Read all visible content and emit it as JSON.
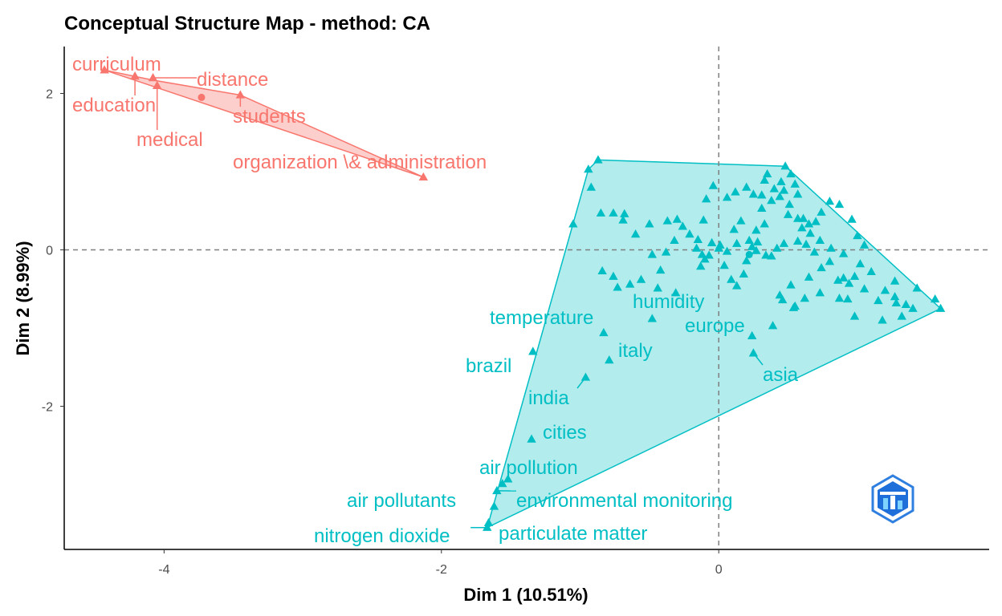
{
  "chart_data": {
    "type": "scatter",
    "title": "Conceptual Structure Map - method: CA",
    "xlabel": "Dim 1 (10.51%)",
    "ylabel": "Dim 2 (8.99%)",
    "xlim": [
      -4.72,
      1.95
    ],
    "ylim": [
      -3.83,
      2.6
    ],
    "xticks": [
      -4,
      -2,
      0
    ],
    "yticks": [
      -2,
      0,
      2
    ],
    "reference_lines": {
      "x": 0,
      "y": 0,
      "style": "dashed"
    },
    "grid": false,
    "legend": "none",
    "clusters": [
      {
        "color": "#F8766D",
        "fill": "rgba(248,118,109,0.35)",
        "hull": [
          [
            -4.43,
            2.3
          ],
          [
            -2.13,
            0.93
          ],
          [
            -3.45,
            1.98
          ],
          [
            -4.08,
            2.17
          ]
        ],
        "centroid": [
          -3.73,
          1.95
        ],
        "points": [
          [
            -4.43,
            2.3
          ],
          [
            -4.21,
            2.22
          ],
          [
            -4.08,
            2.2
          ],
          [
            -4.05,
            2.1
          ],
          [
            -3.45,
            1.98
          ],
          [
            -2.13,
            0.93
          ]
        ],
        "labels": [
          {
            "text": "curriculum",
            "point": [
              -4.43,
              2.3
            ]
          },
          {
            "text": "distance",
            "point": [
              -4.08,
              2.2
            ]
          },
          {
            "text": "education",
            "point": [
              -4.21,
              2.22
            ]
          },
          {
            "text": "students",
            "point": [
              -3.45,
              1.98
            ]
          },
          {
            "text": "medical",
            "point": [
              -4.05,
              2.1
            ]
          },
          {
            "text": "organization \\& administration",
            "point": [
              -2.13,
              0.93
            ]
          }
        ]
      },
      {
        "color": "#00BFC4",
        "fill": "rgba(0,191,196,0.30)",
        "hull": [
          [
            -1.67,
            -3.55
          ],
          [
            1.6,
            -0.75
          ],
          [
            0.48,
            1.07
          ],
          [
            -0.87,
            1.15
          ],
          [
            -0.94,
            1.03
          ]
        ],
        "centroid": [
          0.22,
          -0.06
        ],
        "points": [
          [
            -0.94,
            1.03
          ],
          [
            -0.87,
            1.15
          ],
          [
            -0.92,
            0.8
          ],
          [
            -1.05,
            0.33
          ],
          [
            -0.85,
            0.47
          ],
          [
            -0.76,
            0.47
          ],
          [
            -0.68,
            0.46
          ],
          [
            -0.69,
            0.38
          ],
          [
            -0.6,
            0.2
          ],
          [
            -0.5,
            0.33
          ],
          [
            -0.37,
            0.37
          ],
          [
            -0.3,
            0.39
          ],
          [
            -0.26,
            0.3
          ],
          [
            -0.21,
            0.2
          ],
          [
            -0.32,
            0.12
          ],
          [
            -0.48,
            -0.06
          ],
          [
            -0.38,
            -0.03
          ],
          [
            -0.15,
            0.13
          ],
          [
            -0.16,
            0.02
          ],
          [
            -0.12,
            -0.06
          ],
          [
            -0.1,
            -0.12
          ],
          [
            -0.13,
            -0.21
          ],
          [
            -0.07,
            -0.07
          ],
          [
            -0.05,
            0.09
          ],
          [
            0.01,
            0.06
          ],
          [
            0.06,
            -0.02
          ],
          [
            0.0,
            0.02
          ],
          [
            0.04,
            -0.2
          ],
          [
            0.09,
            -0.38
          ],
          [
            0.13,
            -0.46
          ],
          [
            0.18,
            -0.31
          ],
          [
            0.2,
            -0.14
          ],
          [
            0.13,
            0.08
          ],
          [
            0.22,
            0.12
          ],
          [
            0.28,
            0.1
          ],
          [
            0.27,
            0.25
          ],
          [
            0.33,
            0.33
          ],
          [
            0.31,
            0.53
          ],
          [
            0.38,
            0.63
          ],
          [
            0.44,
            0.68
          ],
          [
            0.48,
            1.07
          ],
          [
            0.33,
            0.89
          ],
          [
            0.35,
            0.97
          ],
          [
            0.45,
            0.87
          ],
          [
            0.52,
            0.97
          ],
          [
            0.55,
            0.84
          ],
          [
            0.57,
            0.71
          ],
          [
            0.51,
            0.58
          ],
          [
            0.57,
            0.4
          ],
          [
            0.61,
            0.4
          ],
          [
            0.65,
            0.33
          ],
          [
            0.7,
            0.36
          ],
          [
            0.74,
            0.48
          ],
          [
            0.8,
            0.62
          ],
          [
            0.87,
            0.58
          ],
          [
            0.96,
            0.39
          ],
          [
            1.0,
            0.18
          ],
          [
            1.05,
            0.06
          ],
          [
            1.02,
            -0.18
          ],
          [
            0.98,
            -0.34
          ],
          [
            0.94,
            -0.43
          ],
          [
            0.9,
            -0.36
          ],
          [
            0.86,
            -0.39
          ],
          [
            0.8,
            -0.15
          ],
          [
            0.74,
            -0.23
          ],
          [
            0.69,
            -0.03
          ],
          [
            0.63,
            0.07
          ],
          [
            0.57,
            0.11
          ],
          [
            0.47,
            0.08
          ],
          [
            0.42,
            0.02
          ],
          [
            0.38,
            -0.08
          ],
          [
            0.34,
            -0.07
          ],
          [
            0.27,
            -0.01
          ],
          [
            0.24,
            0.04
          ],
          [
            0.16,
            0.37
          ],
          [
            0.11,
            0.26
          ],
          [
            -0.11,
            0.38
          ],
          [
            -0.04,
            0.82
          ],
          [
            -0.09,
            0.65
          ],
          [
            0.06,
            0.67
          ],
          [
            0.12,
            0.74
          ],
          [
            0.2,
            0.8
          ],
          [
            0.25,
            0.71
          ],
          [
            0.31,
            0.7
          ],
          [
            0.4,
            0.78
          ],
          [
            0.47,
            0.76
          ],
          [
            0.5,
            0.45
          ],
          [
            0.6,
            0.28
          ],
          [
            0.66,
            0.21
          ],
          [
            0.73,
            0.12
          ],
          [
            0.81,
            0.02
          ],
          [
            0.9,
            -0.05
          ],
          [
            1.1,
            -0.28
          ],
          [
            1.2,
            -0.52
          ],
          [
            1.27,
            -0.6
          ],
          [
            1.35,
            -0.7
          ],
          [
            1.4,
            -0.75
          ],
          [
            1.28,
            -0.68
          ],
          [
            1.15,
            -0.65
          ],
          [
            1.05,
            -0.5
          ],
          [
            0.93,
            -0.63
          ],
          [
            0.62,
            -0.62
          ],
          [
            0.55,
            -0.72
          ],
          [
            0.46,
            -0.64
          ],
          [
            0.44,
            -0.58
          ],
          [
            0.52,
            -0.45
          ],
          [
            0.65,
            -0.35
          ],
          [
            0.73,
            -0.55
          ],
          [
            0.87,
            -0.62
          ],
          [
            0.98,
            -0.85
          ],
          [
            1.27,
            -0.4
          ],
          [
            1.43,
            -0.49
          ],
          [
            1.56,
            -0.63
          ],
          [
            1.6,
            -0.75
          ],
          [
            1.32,
            -0.85
          ],
          [
            1.18,
            -0.9
          ],
          [
            0.39,
            -0.97
          ],
          [
            0.54,
            -0.74
          ],
          [
            -0.31,
            -0.55
          ],
          [
            -0.44,
            -0.49
          ],
          [
            -0.64,
            -0.44
          ],
          [
            -0.73,
            -0.48
          ],
          [
            -0.56,
            -0.38
          ],
          [
            -0.42,
            -0.26
          ],
          [
            -0.84,
            -0.27
          ],
          [
            -0.76,
            -0.34
          ],
          [
            -0.48,
            -0.88
          ],
          [
            -0.83,
            -1.06
          ],
          [
            -0.79,
            -1.41
          ],
          [
            -0.96,
            -1.63
          ],
          [
            -1.34,
            -1.3
          ],
          [
            -1.35,
            -2.42
          ],
          [
            -1.6,
            -3.08
          ],
          [
            -1.56,
            -2.99
          ],
          [
            -1.52,
            -2.93
          ],
          [
            -1.62,
            -3.28
          ],
          [
            -1.66,
            -3.49
          ],
          [
            -1.67,
            -3.55
          ],
          [
            0.24,
            -1.1
          ],
          [
            0.25,
            -1.32
          ]
        ],
        "labels": [
          {
            "text": "humidity",
            "point": [
              -0.48,
              -0.88
            ]
          },
          {
            "text": "temperature",
            "point": [
              -0.83,
              -1.06
            ]
          },
          {
            "text": "europe",
            "point": [
              0.24,
              -1.1
            ]
          },
          {
            "text": "italy",
            "point": [
              -0.79,
              -1.41
            ]
          },
          {
            "text": "brazil",
            "point": [
              -1.34,
              -1.3
            ]
          },
          {
            "text": "asia",
            "point": [
              0.25,
              -1.32
            ]
          },
          {
            "text": "india",
            "point": [
              -0.96,
              -1.63
            ]
          },
          {
            "text": "cities",
            "point": [
              -1.35,
              -2.42
            ]
          },
          {
            "text": "air pollution",
            "point": [
              -1.52,
              -2.93
            ]
          },
          {
            "text": "air pollutants",
            "point": [
              -1.62,
              -3.28
            ]
          },
          {
            "text": "environmental monitoring",
            "point": [
              -1.6,
              -3.08
            ]
          },
          {
            "text": "nitrogen dioxide",
            "point": [
              -1.67,
              -3.55
            ]
          },
          {
            "text": "particulate matter",
            "point": [
              -1.66,
              -3.49
            ]
          }
        ]
      }
    ]
  },
  "watermark": {
    "icon": "bibliometrix-logo-icon",
    "color": "#2f7fe0"
  }
}
